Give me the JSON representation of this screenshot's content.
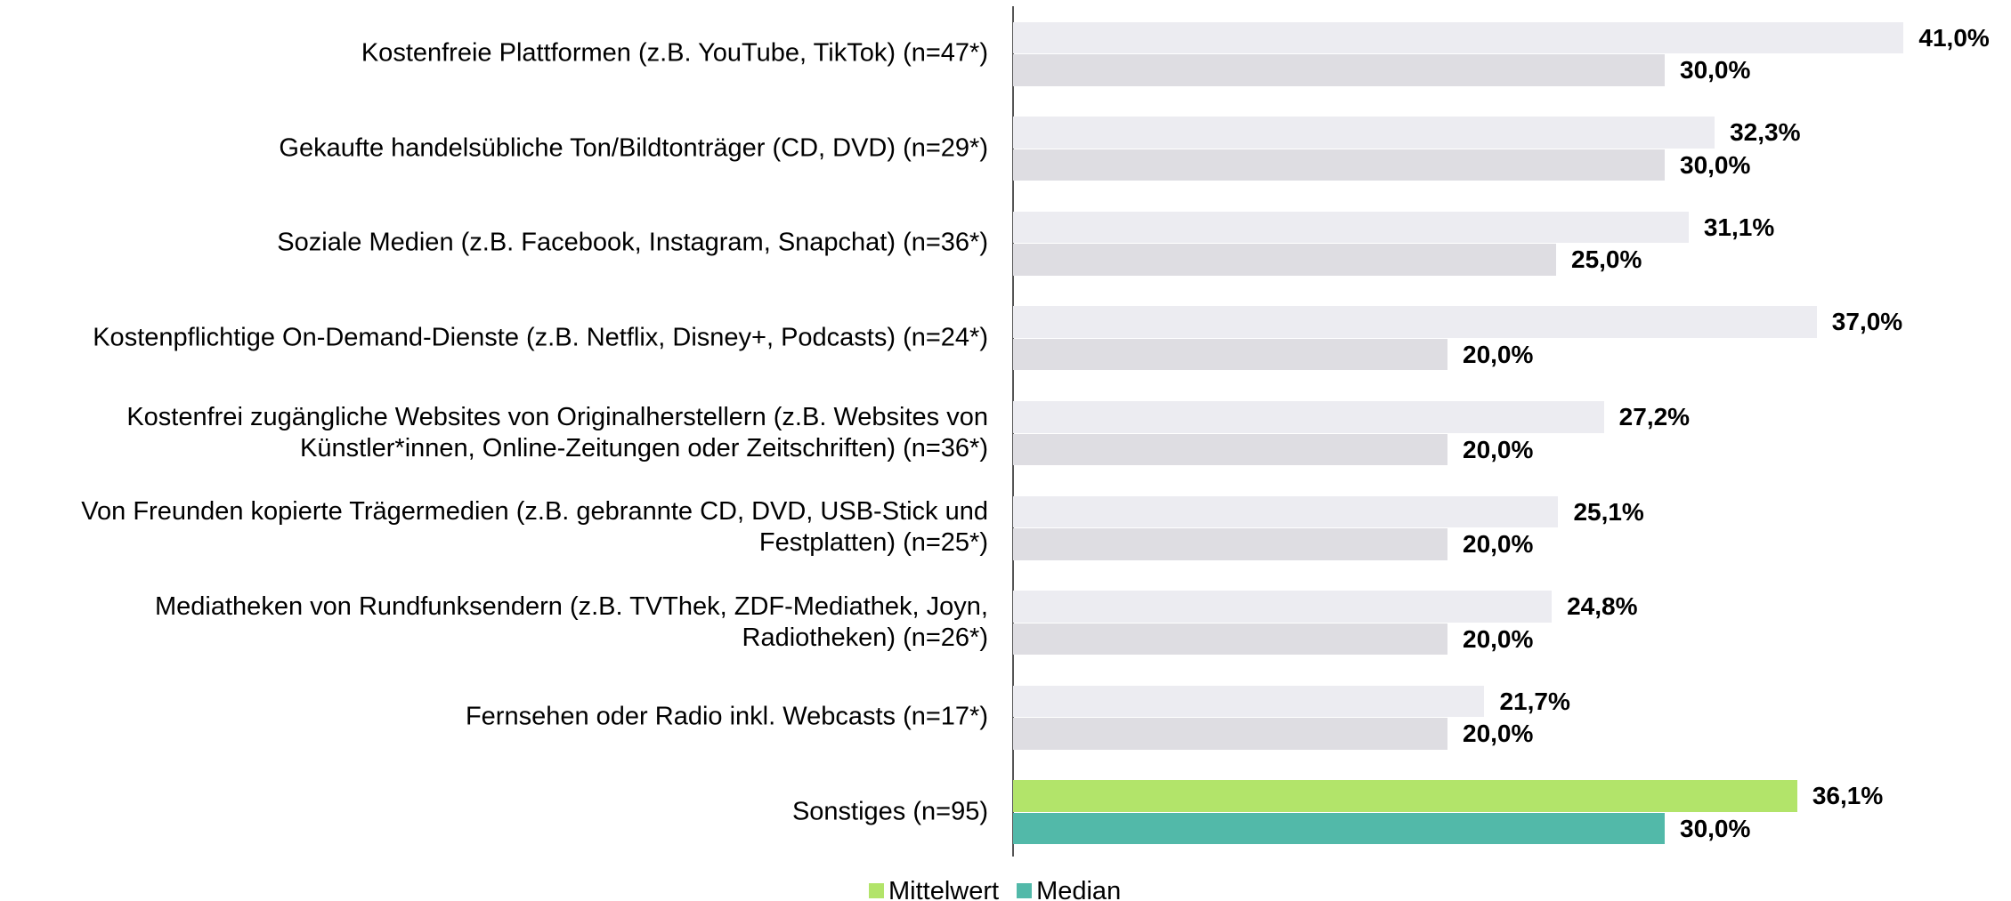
{
  "chart_data": {
    "type": "hbar",
    "categories": [
      "Kostenfreie Plattformen (z.B. YouTube, TikTok) (n=47*)",
      "Gekaufte handelsübliche Ton/Bildtonträger (CD, DVD) (n=29*)",
      "Soziale Medien (z.B. Facebook, Instagram, Snapchat) (n=36*)",
      "Kostenpflichtige On-Demand-Dienste (z.B. Netflix, Disney+, Podcasts) (n=24*)",
      "Kostenfrei zugängliche Websites von Originalherstellern (z.B. Websites von\nKünstler*innen, Online-Zeitungen oder Zeitschriften) (n=36*)",
      "Von Freunden kopierte Trägermedien (z.B. gebrannte CD, DVD, USB-Stick und\nFestplatten) (n=25*)",
      "Mediatheken von Rundfunksendern (z.B. TVThek, ZDF-Mediathek, Joyn,\nRadiotheken) (n=26*)",
      "Fernsehen oder Radio inkl. Webcasts (n=17*)",
      "Sonstiges (n=95)"
    ],
    "series": [
      {
        "name": "Mittelwert",
        "color": "#b2e46a",
        "point_colors": [
          "#ececf1",
          "#ececf1",
          "#ececf1",
          "#ececf1",
          "#ececf1",
          "#ececf1",
          "#ececf1",
          "#ececf1",
          "#b2e46a"
        ],
        "values": [
          41.0,
          32.3,
          31.1,
          37.0,
          27.2,
          25.1,
          24.8,
          21.7,
          36.1
        ],
        "value_labels": [
          "41,0%",
          "32,3%",
          "31,1%",
          "37,0%",
          "27,2%",
          "25,1%",
          "24,8%",
          "21,7%",
          "36,1%"
        ]
      },
      {
        "name": "Median",
        "color": "#52b9a9",
        "point_colors": [
          "#dedde2",
          "#dedde2",
          "#dedde2",
          "#dedde2",
          "#dedde2",
          "#dedde2",
          "#dedde2",
          "#dedde2",
          "#52b9a9"
        ],
        "values": [
          30.0,
          30.0,
          25.0,
          20.0,
          20.0,
          20.0,
          20.0,
          20.0,
          30.0
        ],
        "value_labels": [
          "30,0%",
          "30,0%",
          "25,0%",
          "20,0%",
          "20,0%",
          "20,0%",
          "20,0%",
          "20,0%",
          "30,0%"
        ]
      }
    ],
    "legend": "bottom"
  }
}
